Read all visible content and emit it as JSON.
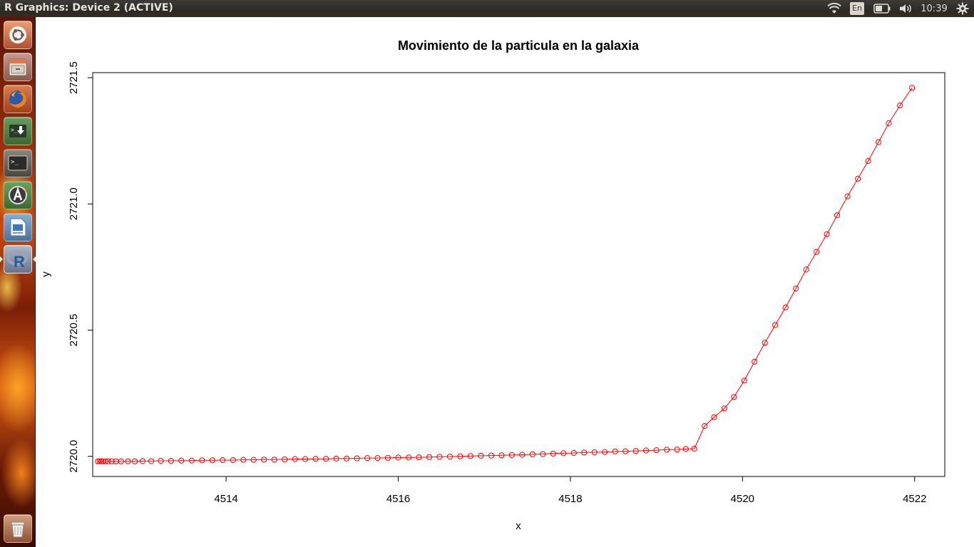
{
  "window": {
    "title": "R Graphics: Device 2 (ACTIVE)"
  },
  "panel": {
    "keyboard_layout": "En",
    "clock": "10:39",
    "indicators": [
      "wifi-icon",
      "keyboard-indicator",
      "battery-icon",
      "volume-icon",
      "clock",
      "session-gear-icon"
    ]
  },
  "launcher": {
    "items": [
      {
        "name": "dash-home",
        "icon": "ubuntu-logo-icon"
      },
      {
        "name": "files",
        "icon": "file-cabinet-icon"
      },
      {
        "name": "firefox",
        "icon": "firefox-icon"
      },
      {
        "name": "installer",
        "icon": "download-arrow-icon"
      },
      {
        "name": "terminal",
        "icon": "terminal-icon"
      },
      {
        "name": "software-updater",
        "icon": "software-updater-icon"
      },
      {
        "name": "libreoffice-impress",
        "icon": "presentation-icon"
      },
      {
        "name": "r-language",
        "icon": "r-logo-icon"
      },
      {
        "name": "trash",
        "icon": "trash-icon"
      }
    ]
  },
  "colors": {
    "series": "#ff0000",
    "axis": "#000000",
    "background": "#ffffff"
  },
  "chart_data": {
    "type": "line",
    "title": "Movimiento de la particula en la galaxia",
    "xlabel": "x",
    "ylabel": "y",
    "xlim": [
      4512.45,
      4522.35
    ],
    "ylim": [
      2719.92,
      2721.52
    ],
    "xticks": [
      4514,
      4516,
      4518,
      4520,
      4522
    ],
    "xtick_labels": [
      "4514",
      "4516",
      "4518",
      "4520",
      "4522"
    ],
    "yticks": [
      2720.0,
      2720.5,
      2721.0,
      2721.5
    ],
    "ytick_labels": [
      "2720.0",
      "2720.5",
      "2721.0",
      "2721.5"
    ],
    "markers": "open-circle",
    "grid": false,
    "series": [
      {
        "points": [
          [
            4512.51,
            2719.98
          ],
          [
            4512.53,
            2719.98
          ],
          [
            4512.55,
            2719.98
          ],
          [
            4512.57,
            2719.98
          ],
          [
            4512.6,
            2719.98
          ],
          [
            4512.63,
            2719.98
          ],
          [
            4512.67,
            2719.98
          ],
          [
            4512.72,
            2719.98
          ],
          [
            4512.78,
            2719.98
          ],
          [
            4512.86,
            2719.98
          ],
          [
            4512.94,
            2719.98
          ],
          [
            4513.03,
            2719.981
          ],
          [
            4513.13,
            2719.981
          ],
          [
            4513.24,
            2719.982
          ],
          [
            4513.36,
            2719.982
          ],
          [
            4513.48,
            2719.983
          ],
          [
            4513.6,
            2719.983
          ],
          [
            4513.72,
            2719.984
          ],
          [
            4513.84,
            2719.984
          ],
          [
            4513.96,
            2719.985
          ],
          [
            4514.08,
            2719.985
          ],
          [
            4514.2,
            2719.986
          ],
          [
            4514.32,
            2719.986
          ],
          [
            4514.44,
            2719.987
          ],
          [
            4514.56,
            2719.987
          ],
          [
            4514.68,
            2719.988
          ],
          [
            4514.8,
            2719.989
          ],
          [
            4514.92,
            2719.989
          ],
          [
            4515.04,
            2719.99
          ],
          [
            4515.16,
            2719.99
          ],
          [
            4515.28,
            2719.991
          ],
          [
            4515.4,
            2719.991
          ],
          [
            4515.52,
            2719.992
          ],
          [
            4515.64,
            2719.993
          ],
          [
            4515.76,
            2719.993
          ],
          [
            4515.88,
            2719.994
          ],
          [
            4516.0,
            2719.995
          ],
          [
            4516.12,
            2719.995
          ],
          [
            4516.24,
            2719.996
          ],
          [
            4516.36,
            2719.997
          ],
          [
            4516.48,
            2719.998
          ],
          [
            4516.6,
            2719.999
          ],
          [
            4516.72,
            2720.0
          ],
          [
            4516.84,
            2720.001
          ],
          [
            4516.96,
            2720.002
          ],
          [
            4517.08,
            2720.003
          ],
          [
            4517.2,
            2720.004
          ],
          [
            4517.32,
            2720.005
          ],
          [
            4517.44,
            2720.006
          ],
          [
            4517.56,
            2720.008
          ],
          [
            4517.68,
            2720.009
          ],
          [
            4517.8,
            2720.011
          ],
          [
            4517.92,
            2720.012
          ],
          [
            4518.04,
            2720.013
          ],
          [
            4518.16,
            2720.015
          ],
          [
            4518.28,
            2720.016
          ],
          [
            4518.4,
            2720.017
          ],
          [
            4518.52,
            2720.019
          ],
          [
            4518.64,
            2720.02
          ],
          [
            4518.76,
            2720.021
          ],
          [
            4518.88,
            2720.023
          ],
          [
            4519.0,
            2720.024
          ],
          [
            4519.12,
            2720.026
          ],
          [
            4519.24,
            2720.027
          ],
          [
            4519.34,
            2720.029
          ],
          [
            4519.44,
            2720.03
          ],
          [
            4519.56,
            2720.12
          ],
          [
            4519.67,
            2720.155
          ],
          [
            4519.79,
            2720.19
          ],
          [
            4519.9,
            2720.235
          ],
          [
            4520.02,
            2720.3
          ],
          [
            4520.14,
            2720.375
          ],
          [
            4520.26,
            2720.45
          ],
          [
            4520.38,
            2720.52
          ],
          [
            4520.5,
            2720.59
          ],
          [
            4520.62,
            2720.665
          ],
          [
            4520.74,
            2720.74
          ],
          [
            4520.86,
            2720.81
          ],
          [
            4520.98,
            2720.88
          ],
          [
            4521.1,
            2720.955
          ],
          [
            4521.22,
            2721.03
          ],
          [
            4521.34,
            2721.1
          ],
          [
            4521.46,
            2721.17
          ],
          [
            4521.58,
            2721.245
          ],
          [
            4521.7,
            2721.32
          ],
          [
            4521.83,
            2721.39
          ],
          [
            4521.97,
            2721.46
          ]
        ]
      }
    ]
  }
}
